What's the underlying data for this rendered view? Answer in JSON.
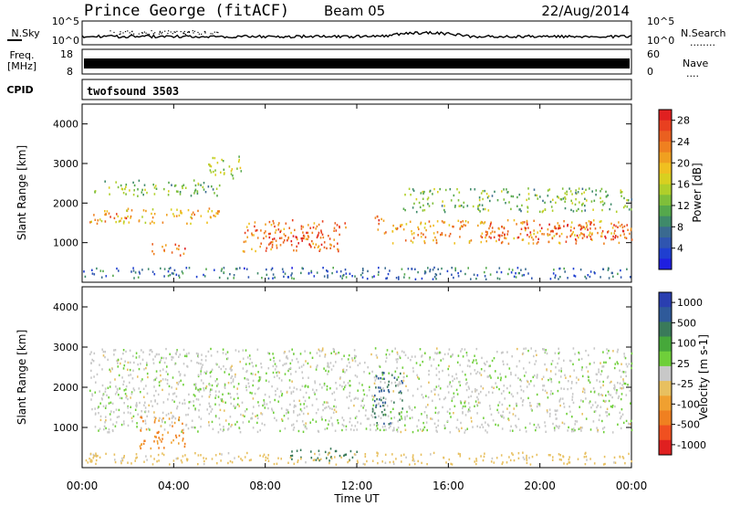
{
  "header": {
    "station": "Prince George (fitACF)",
    "beam": "Beam 05",
    "date": "22/Aug/2014"
  },
  "strips": {
    "noise": {
      "left_label": "N.Sky",
      "left_ticks": [
        "10^5",
        "10^0"
      ],
      "right_ticks": [
        "10^5",
        "10^0"
      ],
      "right_label": "N.Search",
      "right_dots": "........"
    },
    "freq": {
      "left_label_1": "Freq.",
      "left_label_2": "[MHz]",
      "left_ticks": [
        "18",
        "8"
      ],
      "right_ticks": [
        "60",
        "0"
      ],
      "right_label": "Nave",
      "right_dots": "...."
    },
    "cpid": {
      "left_label": "CPID",
      "value": "twofsound 3503"
    }
  },
  "chart_data": [
    {
      "type": "heatmap",
      "name_hint": "power",
      "ylabel": "Slant Range [km]",
      "yticks": [
        "1000",
        "2000",
        "3000",
        "4000"
      ],
      "ylim": [
        0,
        4500
      ],
      "xlim_hours": [
        0,
        24
      ],
      "colorbar": {
        "label": "Power [dB]",
        "ticks": [
          "4",
          "8",
          "12",
          "16",
          "20",
          "24",
          "28"
        ],
        "range": [
          0,
          30
        ],
        "colors": [
          "#1f1fe0",
          "#1f3fd0",
          "#2f55b0",
          "#3a6a90",
          "#3f8a6a",
          "#55a84c",
          "#7fbf3a",
          "#b0cf2a",
          "#d8d020",
          "#f0c020",
          "#f0a020",
          "#ef8020",
          "#ea6020",
          "#e84020",
          "#e02020"
        ]
      },
      "scatter_regions": [
        {
          "t": [
            0.5,
            6.0
          ],
          "range_km": [
            2200,
            2600
          ],
          "level": 12
        },
        {
          "t": [
            0.3,
            6.0
          ],
          "range_km": [
            1500,
            1900
          ],
          "level": 20
        },
        {
          "t": [
            1.0,
            2.0
          ],
          "range_km": [
            1600,
            1800
          ],
          "level": 26
        },
        {
          "t": [
            3.0,
            4.5
          ],
          "range_km": [
            700,
            1000
          ],
          "level": 26
        },
        {
          "t": [
            7.0,
            11.5
          ],
          "range_km": [
            800,
            1600
          ],
          "level": 24
        },
        {
          "t": [
            8.0,
            10.5
          ],
          "range_km": [
            900,
            1300
          ],
          "level": 28
        },
        {
          "t": [
            13.5,
            24.0
          ],
          "range_km": [
            1000,
            1600
          ],
          "level": 22
        },
        {
          "t": [
            17.5,
            24.0
          ],
          "range_km": [
            1100,
            1500
          ],
          "level": 28
        },
        {
          "t": [
            14.0,
            24.0
          ],
          "range_km": [
            1800,
            2400
          ],
          "level": 12
        },
        {
          "t": [
            12.7,
            13.3
          ],
          "range_km": [
            1200,
            1700
          ],
          "level": 26
        },
        {
          "t": [
            0.0,
            24.0
          ],
          "range_km": [
            100,
            400
          ],
          "level": 6
        },
        {
          "t": [
            5.5,
            7.0
          ],
          "range_km": [
            2600,
            3200
          ],
          "level": 14
        }
      ]
    },
    {
      "type": "heatmap",
      "name_hint": "velocity",
      "ylabel": "Slant Range [km]",
      "yticks": [
        "1000",
        "2000",
        "3000",
        "4000"
      ],
      "ylim": [
        0,
        4500
      ],
      "xlabel": "Time UT",
      "xticks": [
        "00:00",
        "04:00",
        "08:00",
        "12:00",
        "16:00",
        "20:00",
        "00:00"
      ],
      "xlim_hours": [
        0,
        24
      ],
      "colorbar": {
        "label": "Velocity [m s-1]",
        "ticks": [
          "1000",
          "500",
          "100",
          "25",
          "-25",
          "-100",
          "-500",
          "-1000"
        ],
        "colors": [
          "#2a3fb0",
          "#2f5a9a",
          "#3a7a5a",
          "#46a83a",
          "#6fcf3a",
          "#c8c8c8",
          "#e8c060",
          "#f0a030",
          "#f08020",
          "#f05020",
          "#e02020"
        ]
      },
      "scatter_regions": [
        {
          "t": [
            0.3,
            24.0
          ],
          "range_km": [
            900,
            3000
          ],
          "level": 0
        },
        {
          "t": [
            2.5,
            4.5
          ],
          "range_km": [
            500,
            1300
          ],
          "level": -300
        },
        {
          "t": [
            9.0,
            12.0
          ],
          "range_km": [
            200,
            500
          ],
          "level": 150
        },
        {
          "t": [
            12.6,
            14.0
          ],
          "range_km": [
            1100,
            2400
          ],
          "level": 300
        },
        {
          "t": [
            0.0,
            24.0
          ],
          "range_km": [
            100,
            400
          ],
          "level": -50
        }
      ]
    }
  ]
}
